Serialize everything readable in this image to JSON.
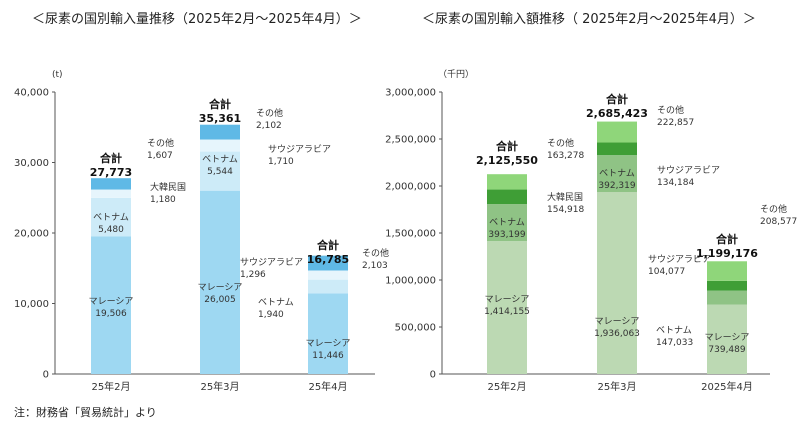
{
  "chart_data": [
    {
      "type": "bar",
      "stacked": true,
      "title": "＜尿素の国別輸入量推移（2025年2月～2025年4月）＞",
      "unit": "(t)",
      "ylim": [
        0,
        40000
      ],
      "yticks": [
        "0",
        "10,000",
        "20,000",
        "30,000",
        "40,000"
      ],
      "categories": [
        "25年2月",
        "25年3月",
        "25年4月"
      ],
      "series": [
        {
          "name": "マレーシア",
          "values": [
            19506,
            26005,
            11446
          ],
          "labels": [
            "19,506",
            "26,005",
            "11,446"
          ],
          "color": "#9ed8f2"
        },
        {
          "name": "ベトナム",
          "values": [
            5480,
            5544,
            1940
          ],
          "labels": [
            "5,480",
            "5,544",
            "1,940"
          ],
          "color": "#cdebf8"
        },
        {
          "name": "大韓民国",
          "values": [
            1180,
            null,
            null
          ],
          "labels": [
            "1,180",
            "",
            ""
          ],
          "color": "#e6f5fc"
        },
        {
          "name": "サウジアラビア",
          "values": [
            null,
            1710,
            1296
          ],
          "labels": [
            "",
            "1,710",
            "1,296"
          ],
          "color": "#e6f5fc"
        },
        {
          "name": "その他",
          "values": [
            1607,
            2102,
            2103
          ],
          "labels": [
            "1,607",
            "2,102",
            "2,103"
          ],
          "color": "#5fb9e6"
        }
      ],
      "total_label": "合計",
      "totals": [
        "27,773",
        "35,361",
        "16,785"
      ],
      "grid": false
    },
    {
      "type": "bar",
      "stacked": true,
      "title": "＜尿素の国別輸入額推移（ 2025年2月～2025年4月）＞",
      "unit": "（千円）",
      "ylim": [
        0,
        3000000
      ],
      "yticks": [
        "0",
        "500,000",
        "1,000,000",
        "1,500,000",
        "2,000,000",
        "2,500,000",
        "3,000,000"
      ],
      "categories": [
        "25年2月",
        "25年3月",
        "2025年4月"
      ],
      "series": [
        {
          "name": "マレーシア",
          "values": [
            1414155,
            1936063,
            739489
          ],
          "labels": [
            "1,414,155",
            "1,936,063",
            "739,489"
          ],
          "color": "#bcd9b3"
        },
        {
          "name": "ベトナム",
          "values": [
            393199,
            392319,
            147033
          ],
          "labels": [
            "393,199",
            "392,319",
            "147,033"
          ],
          "color": "#8fc385"
        },
        {
          "name": "大韓民国",
          "values": [
            154918,
            null,
            null
          ],
          "labels": [
            "154,918",
            "",
            ""
          ],
          "color": "#3f9e36"
        },
        {
          "name": "サウジアラビア",
          "values": [
            null,
            134184,
            104077
          ],
          "labels": [
            "",
            "134,184",
            "104,077"
          ],
          "color": "#3f9e36"
        },
        {
          "name": "その他",
          "values": [
            163278,
            222857,
            208577
          ],
          "labels": [
            "163,278",
            "222,857",
            "208,577"
          ],
          "color": "#8fd67a"
        }
      ],
      "total_label": "合計",
      "totals": [
        "2,125,550",
        "2,685,423",
        "1,199,176"
      ],
      "grid": false
    }
  ],
  "note": "注：財務省「貿易統計」より"
}
